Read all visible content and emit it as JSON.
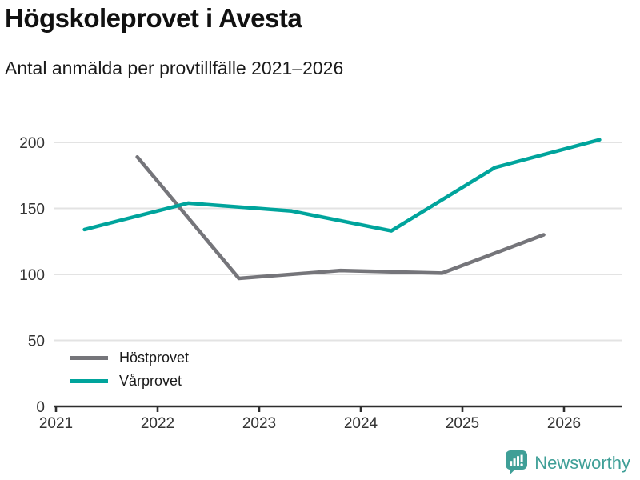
{
  "header": {
    "title": "Högskoleprovet i Avesta",
    "subtitle": "Antal anmälda per provtillfälle 2021–2026"
  },
  "chart_data": {
    "type": "line",
    "title": "Högskoleprovet i Avesta",
    "subtitle": "Antal anmälda per provtillfälle 2021–2026",
    "xlabel": "",
    "ylabel": "",
    "x_ticks": [
      2021,
      2022,
      2023,
      2024,
      2025,
      2026
    ],
    "y_ticks": [
      0,
      50,
      100,
      150,
      200
    ],
    "xlim": [
      2021,
      2026.6
    ],
    "ylim": [
      0,
      205
    ],
    "grid": "horizontal",
    "legend_position": "inside-bottom-left",
    "series": [
      {
        "name": "Höstprovet",
        "color": "#75757a",
        "points": [
          {
            "x": 2021.8,
            "y": 189
          },
          {
            "x": 2022.8,
            "y": 97
          },
          {
            "x": 2023.8,
            "y": 103
          },
          {
            "x": 2024.8,
            "y": 101
          },
          {
            "x": 2025.8,
            "y": 130
          }
        ]
      },
      {
        "name": "Vårprovet",
        "color": "#00a49c",
        "points": [
          {
            "x": 2021.28,
            "y": 134
          },
          {
            "x": 2022.3,
            "y": 154
          },
          {
            "x": 2023.32,
            "y": 148
          },
          {
            "x": 2024.3,
            "y": 133
          },
          {
            "x": 2025.32,
            "y": 181
          },
          {
            "x": 2026.35,
            "y": 202
          }
        ]
      }
    ]
  },
  "branding": {
    "name": "Newsworthy",
    "color": "#3f9f97"
  },
  "colors": {
    "gridline": "#e3e3e3",
    "axis": "#2d2d2d",
    "tick_label": "#333333"
  }
}
